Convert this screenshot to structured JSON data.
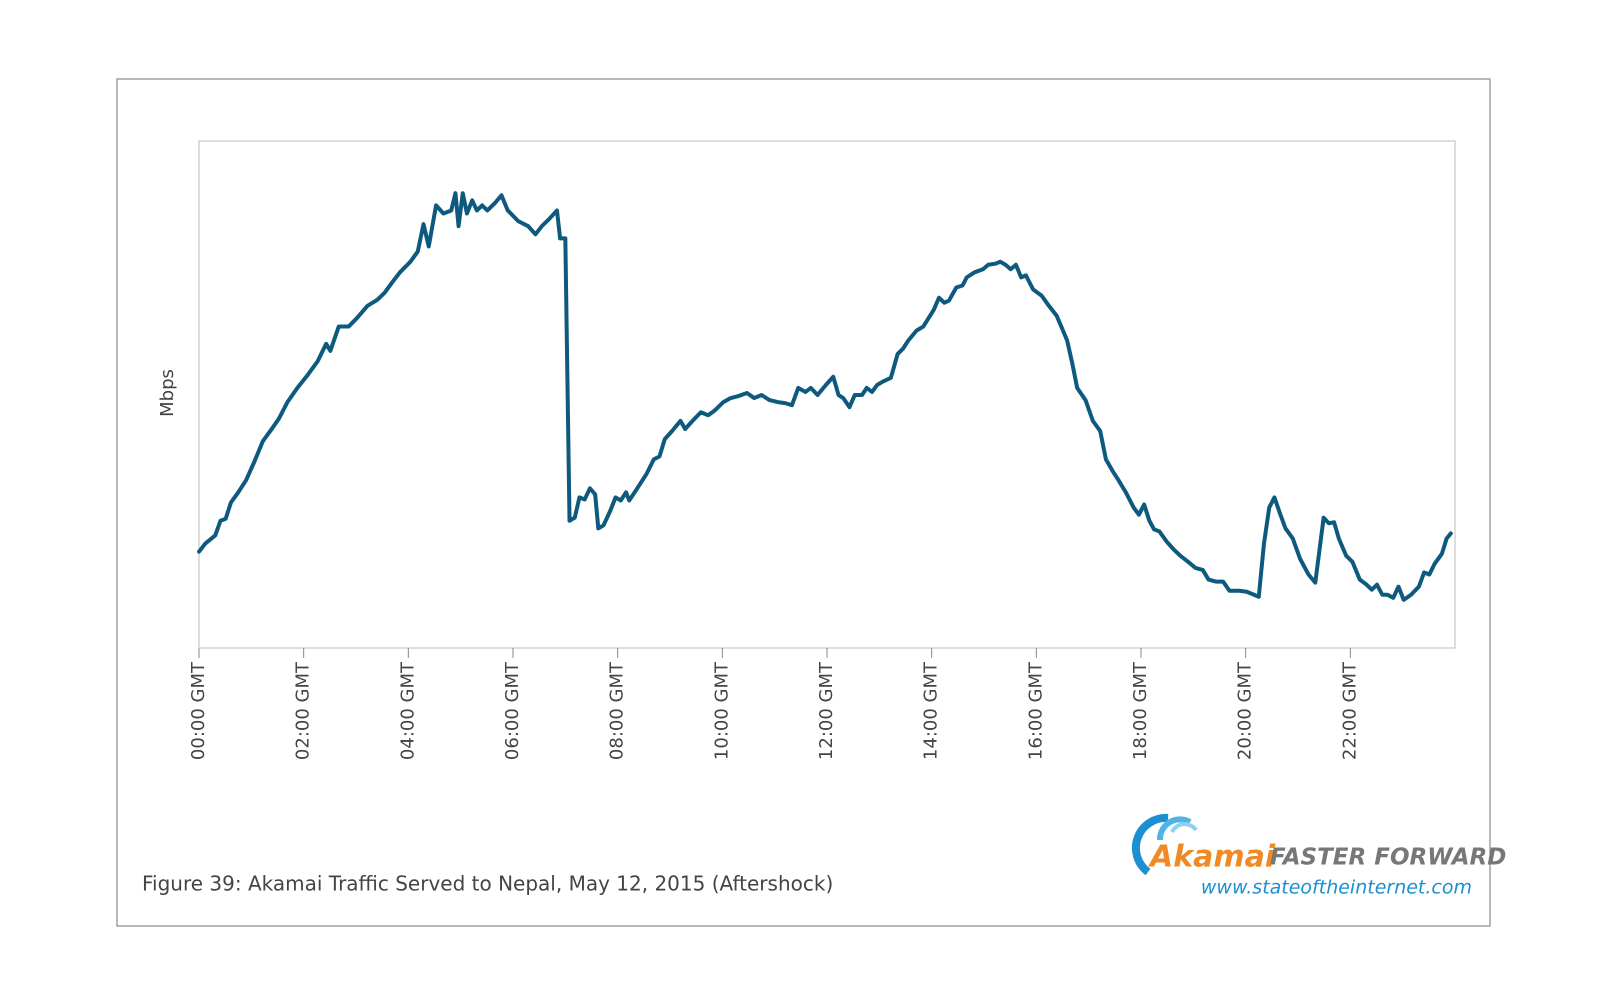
{
  "chart_data": {
    "type": "line",
    "caption": "Figure 39: Akamai Traffic Served to Nepal, May 12, 2015 (Aftershock)",
    "y_label": "Mbps",
    "color": "#0e5a7e",
    "grid": false,
    "xlim": [
      0,
      24
    ],
    "ylim": [
      0,
      100
    ],
    "xticks": [
      {
        "value": 0,
        "label": "00:00 GMT"
      },
      {
        "value": 2,
        "label": "02:00 GMT"
      },
      {
        "value": 4,
        "label": "04:00 GMT"
      },
      {
        "value": 6,
        "label": "06:00 GMT"
      },
      {
        "value": 8,
        "label": "08:00 GMT"
      },
      {
        "value": 10,
        "label": "10:00 GMT"
      },
      {
        "value": 12,
        "label": "12:00 GMT"
      },
      {
        "value": 14,
        "label": "14:00 GMT"
      },
      {
        "value": 16,
        "label": "16:00 GMT"
      },
      {
        "value": 18,
        "label": "18:00 GMT"
      },
      {
        "value": 20,
        "label": "20:00 GMT"
      },
      {
        "value": 22,
        "label": "22:00 GMT"
      }
    ],
    "x": [
      0,
      0.12,
      0.31,
      0.41,
      0.51,
      0.61,
      0.75,
      0.9,
      1.06,
      1.22,
      1.39,
      1.53,
      1.69,
      1.88,
      2.08,
      2.27,
      2.43,
      2.51,
      2.67,
      2.86,
      3.02,
      3.22,
      3.41,
      3.55,
      3.69,
      3.84,
      4.04,
      4.18,
      4.29,
      4.39,
      4.53,
      4.67,
      4.82,
      4.9,
      4.96,
      5.04,
      5.12,
      5.22,
      5.31,
      5.41,
      5.51,
      5.65,
      5.78,
      5.9,
      6.1,
      6.29,
      6.43,
      6.55,
      6.69,
      6.84,
      6.9,
      7,
      7.08,
      7.18,
      7.27,
      7.37,
      7.47,
      7.57,
      7.63,
      7.73,
      7.86,
      7.96,
      8.06,
      8.16,
      8.22,
      8.35,
      8.55,
      8.69,
      8.8,
      8.9,
      9.04,
      9.2,
      9.29,
      9.43,
      9.59,
      9.73,
      9.86,
      10.02,
      10.16,
      10.31,
      10.47,
      10.61,
      10.75,
      10.9,
      11.06,
      11.2,
      11.33,
      11.45,
      11.59,
      11.69,
      11.82,
      11.98,
      12.12,
      12.22,
      12.31,
      12.43,
      12.53,
      12.67,
      12.76,
      12.86,
      12.96,
      13.06,
      13.22,
      13.35,
      13.45,
      13.55,
      13.71,
      13.84,
      14.04,
      14.14,
      14.24,
      14.33,
      14.47,
      14.59,
      14.67,
      14.82,
      14.98,
      15.08,
      15.22,
      15.31,
      15.41,
      15.51,
      15.61,
      15.71,
      15.8,
      15.94,
      16.1,
      16.24,
      16.39,
      16.51,
      16.59,
      16.69,
      16.78,
      16.94,
      17.08,
      17.22,
      17.33,
      17.47,
      17.57,
      17.71,
      17.86,
      17.96,
      18.06,
      18.16,
      18.25,
      18.35,
      18.49,
      18.61,
      18.75,
      18.9,
      19.04,
      19.18,
      19.29,
      19.43,
      19.57,
      19.69,
      19.88,
      20.02,
      20.16,
      20.25,
      20.35,
      20.45,
      20.55,
      20.65,
      20.76,
      20.9,
      21.04,
      21.2,
      21.33,
      21.49,
      21.59,
      21.69,
      21.78,
      21.92,
      22.04,
      22.18,
      22.31,
      22.41,
      22.51,
      22.61,
      22.71,
      22.82,
      22.92,
      23.02,
      23.16,
      23.31,
      23.41,
      23.51,
      23.61,
      23.75,
      23.84,
      23.92
    ],
    "values": [
      19,
      20.6,
      22.2,
      25.1,
      25.5,
      28.7,
      30.7,
      33.1,
      36.8,
      40.8,
      43.2,
      45.3,
      48.5,
      51.3,
      53.9,
      56.6,
      60,
      58.6,
      63.4,
      63.4,
      65.1,
      67.5,
      68.7,
      70.1,
      72.1,
      74.1,
      76.2,
      78.2,
      83.6,
      79.2,
      87.3,
      85.7,
      86.3,
      89.7,
      83.2,
      89.7,
      85.7,
      88.3,
      86.3,
      87.3,
      86.3,
      87.7,
      89.3,
      86.3,
      84.2,
      83.2,
      81.6,
      83.2,
      84.6,
      86.3,
      80.8,
      80.8,
      25.1,
      25.7,
      29.7,
      29.3,
      31.5,
      30.3,
      23.6,
      24.2,
      27.1,
      29.7,
      29.1,
      30.7,
      29.1,
      31.1,
      34.3,
      37.2,
      37.8,
      41.2,
      42.8,
      44.8,
      43.2,
      44.8,
      46.5,
      45.9,
      46.9,
      48.5,
      49.3,
      49.7,
      50.3,
      49.3,
      49.9,
      48.9,
      48.5,
      48.3,
      47.9,
      51.3,
      50.5,
      51.3,
      49.9,
      51.9,
      53.5,
      49.9,
      49.3,
      47.5,
      49.9,
      49.9,
      51.3,
      50.5,
      51.9,
      52.5,
      53.3,
      58,
      59,
      60.6,
      62.6,
      63.4,
      66.7,
      69.1,
      68.1,
      68.5,
      71.1,
      71.5,
      73.1,
      74.1,
      74.7,
      75.6,
      75.8,
      76.2,
      75.6,
      74.7,
      75.6,
      73.1,
      73.5,
      70.7,
      69.5,
      67.5,
      65.5,
      62.6,
      60.6,
      56,
      51.3,
      48.9,
      44.8,
      42.8,
      37.2,
      34.7,
      33.1,
      30.7,
      27.7,
      26.3,
      28.3,
      25.1,
      23.4,
      23,
      21,
      19.6,
      18.2,
      17,
      15.8,
      15.4,
      13.5,
      13.1,
      13.1,
      11.3,
      11.3,
      11.1,
      10.5,
      10.1,
      20.6,
      27.7,
      29.7,
      26.7,
      23.6,
      21.6,
      17.6,
      14.5,
      12.9,
      25.7,
      24.6,
      24.8,
      21.6,
      18.2,
      17,
      13.5,
      12.5,
      11.5,
      12.5,
      10.5,
      10.5,
      9.9,
      12.1,
      9.5,
      10.5,
      12.1,
      14.9,
      14.5,
      16.6,
      18.6,
      21.6,
      22.6
    ]
  },
  "logo": {
    "name": "Akamai",
    "tagline": "FASTER FORWARD",
    "url": "www.stateoftheinternet.com"
  }
}
